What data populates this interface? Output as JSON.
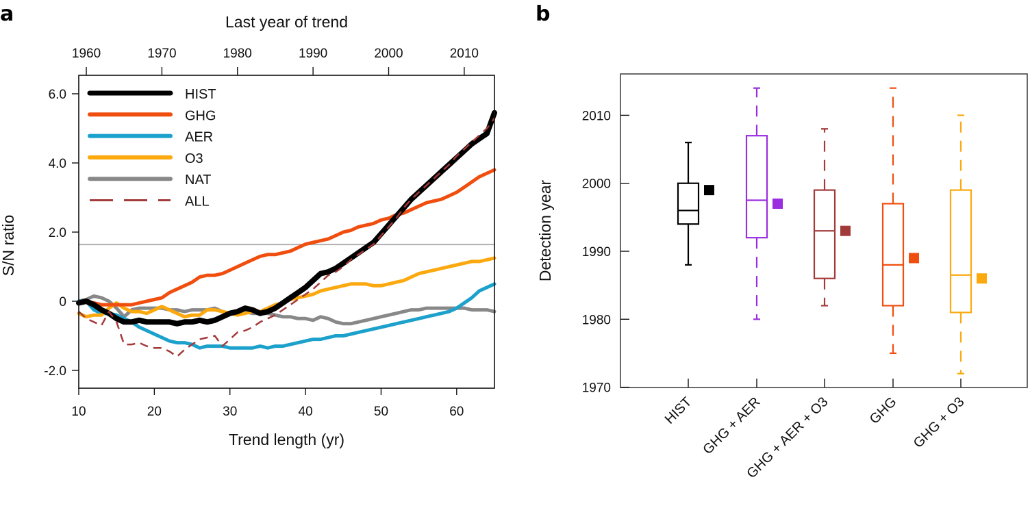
{
  "chart_data": [
    {
      "panel": "a",
      "type": "line",
      "title": "",
      "xlabel": "Trend length (yr)",
      "ylabel": "S/N ratio",
      "top_xlabel": "Last year of trend",
      "xlim": [
        10,
        65
      ],
      "ylim": [
        -2.6,
        6.5
      ],
      "xticks": [
        10,
        20,
        30,
        40,
        50,
        60
      ],
      "xtick_labels": [
        "10",
        "20",
        "30",
        "40",
        "50",
        "60"
      ],
      "yticks": [
        -2,
        0,
        2,
        4,
        6
      ],
      "ytick_labels": [
        "-2.0",
        "0",
        "2.0",
        "4.0",
        "6.0"
      ],
      "top_xticks_trend_length": [
        11,
        21,
        31,
        41,
        51,
        61
      ],
      "top_xtick_labels": [
        "1960",
        "1970",
        "1980",
        "1990",
        "2000",
        "2010"
      ],
      "threshold_line": 1.64,
      "legend_position": "top-left",
      "x": [
        10,
        11,
        12,
        13,
        14,
        15,
        16,
        17,
        18,
        19,
        20,
        21,
        22,
        23,
        24,
        25,
        26,
        27,
        28,
        29,
        30,
        31,
        32,
        33,
        34,
        35,
        36,
        37,
        38,
        39,
        40,
        41,
        42,
        43,
        44,
        45,
        46,
        47,
        48,
        49,
        50,
        51,
        52,
        53,
        54,
        55,
        56,
        57,
        58,
        59,
        60,
        61,
        62,
        63,
        64,
        65
      ],
      "series": [
        {
          "name": "HIST",
          "color": "#000000",
          "style": "solid-thick",
          "values": [
            -0.05,
            0.0,
            -0.1,
            -0.25,
            -0.35,
            -0.5,
            -0.6,
            -0.6,
            -0.55,
            -0.6,
            -0.6,
            -0.6,
            -0.6,
            -0.65,
            -0.6,
            -0.6,
            -0.55,
            -0.6,
            -0.55,
            -0.45,
            -0.35,
            -0.3,
            -0.2,
            -0.25,
            -0.35,
            -0.3,
            -0.2,
            -0.05,
            0.1,
            0.25,
            0.4,
            0.6,
            0.8,
            0.85,
            0.95,
            1.1,
            1.25,
            1.4,
            1.55,
            1.7,
            1.95,
            2.2,
            2.45,
            2.7,
            2.95,
            3.15,
            3.35,
            3.55,
            3.75,
            3.95,
            4.15,
            4.35,
            4.55,
            4.7,
            4.85,
            5.45
          ]
        },
        {
          "name": "GHG",
          "color": "#f04e0f",
          "style": "solid",
          "values": [
            -0.05,
            0.0,
            -0.05,
            -0.1,
            -0.1,
            -0.1,
            -0.1,
            -0.1,
            -0.05,
            0.0,
            0.05,
            0.1,
            0.25,
            0.35,
            0.45,
            0.55,
            0.7,
            0.75,
            0.75,
            0.8,
            0.9,
            1.0,
            1.1,
            1.2,
            1.3,
            1.35,
            1.35,
            1.4,
            1.45,
            1.55,
            1.65,
            1.7,
            1.75,
            1.8,
            1.9,
            2.0,
            2.05,
            2.15,
            2.2,
            2.25,
            2.35,
            2.4,
            2.5,
            2.55,
            2.65,
            2.75,
            2.85,
            2.9,
            2.95,
            3.05,
            3.15,
            3.3,
            3.45,
            3.6,
            3.7,
            3.8
          ]
        },
        {
          "name": "AER",
          "color": "#1ba1cc",
          "style": "solid",
          "values": [
            0.0,
            0.0,
            -0.25,
            -0.35,
            -0.35,
            -0.4,
            -0.5,
            -0.6,
            -0.75,
            -0.85,
            -0.95,
            -1.05,
            -1.15,
            -1.2,
            -1.2,
            -1.25,
            -1.35,
            -1.3,
            -1.3,
            -1.3,
            -1.35,
            -1.35,
            -1.35,
            -1.35,
            -1.3,
            -1.35,
            -1.3,
            -1.3,
            -1.25,
            -1.2,
            -1.15,
            -1.1,
            -1.1,
            -1.05,
            -1.0,
            -1.0,
            -0.95,
            -0.9,
            -0.85,
            -0.8,
            -0.75,
            -0.7,
            -0.65,
            -0.6,
            -0.55,
            -0.5,
            -0.45,
            -0.4,
            -0.35,
            -0.3,
            -0.2,
            -0.05,
            0.1,
            0.3,
            0.4,
            0.5
          ]
        },
        {
          "name": "O3",
          "color": "#fca90f",
          "style": "solid",
          "values": [
            -0.35,
            -0.45,
            -0.4,
            -0.4,
            -0.2,
            -0.05,
            -0.2,
            -0.3,
            -0.3,
            -0.35,
            -0.25,
            -0.15,
            -0.25,
            -0.35,
            -0.45,
            -0.4,
            -0.4,
            -0.25,
            -0.25,
            -0.3,
            -0.35,
            -0.4,
            -0.35,
            -0.3,
            -0.3,
            -0.2,
            -0.1,
            -0.05,
            0.05,
            0.1,
            0.15,
            0.2,
            0.3,
            0.35,
            0.4,
            0.45,
            0.5,
            0.5,
            0.5,
            0.45,
            0.45,
            0.5,
            0.55,
            0.6,
            0.7,
            0.8,
            0.85,
            0.9,
            0.95,
            1.0,
            1.05,
            1.1,
            1.15,
            1.15,
            1.2,
            1.25
          ]
        },
        {
          "name": "NAT",
          "color": "#888888",
          "style": "solid",
          "values": [
            0.0,
            0.05,
            0.15,
            0.1,
            0.0,
            -0.2,
            -0.45,
            -0.25,
            -0.2,
            -0.2,
            -0.2,
            -0.2,
            -0.25,
            -0.25,
            -0.3,
            -0.25,
            -0.25,
            -0.25,
            -0.2,
            -0.3,
            -0.35,
            -0.3,
            -0.3,
            -0.35,
            -0.35,
            -0.35,
            -0.4,
            -0.45,
            -0.45,
            -0.5,
            -0.5,
            -0.55,
            -0.45,
            -0.5,
            -0.6,
            -0.65,
            -0.65,
            -0.6,
            -0.55,
            -0.5,
            -0.45,
            -0.4,
            -0.35,
            -0.3,
            -0.25,
            -0.25,
            -0.2,
            -0.2,
            -0.2,
            -0.2,
            -0.2,
            -0.2,
            -0.25,
            -0.25,
            -0.25,
            -0.3
          ]
        },
        {
          "name": "ALL",
          "color": "#a33a3a",
          "style": "dashed",
          "values": [
            -0.3,
            -0.5,
            -0.6,
            -0.7,
            -0.3,
            -0.6,
            -1.25,
            -1.25,
            -1.2,
            -1.3,
            -1.35,
            -1.35,
            -1.45,
            -1.6,
            -1.4,
            -1.25,
            -1.1,
            -1.05,
            -1.0,
            -1.3,
            -1.1,
            -0.9,
            -0.85,
            -0.75,
            -0.6,
            -0.5,
            -0.4,
            -0.25,
            -0.1,
            0.05,
            0.2,
            0.35,
            0.55,
            0.75,
            0.85,
            1.0,
            1.2,
            1.35,
            1.5,
            1.65,
            1.9,
            2.15,
            2.4,
            2.7,
            2.95,
            3.15,
            3.35,
            3.55,
            3.75,
            3.95,
            4.2,
            4.4,
            4.6,
            4.8,
            5.0,
            5.3
          ]
        }
      ]
    },
    {
      "panel": "b",
      "type": "box",
      "title": "",
      "xlabel": "",
      "ylabel": "Detection year",
      "ylim": [
        1970,
        2016
      ],
      "yticks": [
        1970,
        1980,
        1990,
        2000,
        2010
      ],
      "ytick_labels": [
        "1970",
        "1980",
        "1990",
        "2000",
        "2010"
      ],
      "categories": [
        "HIST",
        "GHG + AER",
        "GHG + AER + O3",
        "GHG",
        "GHG + O3"
      ],
      "boxes": [
        {
          "name": "HIST",
          "color": "#000000",
          "whisker_low": 1988,
          "q1": 1994,
          "median": 1996,
          "q3": 2000,
          "whisker_high": 2006,
          "marker": 1999
        },
        {
          "name": "GHG + AER",
          "color": "#9b2de0",
          "whisker_low": 1980,
          "q1": 1992,
          "median": 1997.5,
          "q3": 2007,
          "whisker_high": 2014,
          "marker": 1997
        },
        {
          "name": "GHG + AER + O3",
          "color": "#a33a3a",
          "whisker_low": 1982,
          "q1": 1986,
          "median": 1993,
          "q3": 1999,
          "whisker_high": 2008,
          "marker": 1993
        },
        {
          "name": "GHG",
          "color": "#f04e0f",
          "whisker_low": 1975,
          "q1": 1982,
          "median": 1988,
          "q3": 1997,
          "whisker_high": 2014,
          "marker": 1989
        },
        {
          "name": "GHG + O3",
          "color": "#fca90f",
          "whisker_low": 1972,
          "q1": 1981,
          "median": 1986.5,
          "q3": 1999,
          "whisker_high": 2010,
          "marker": 1986
        }
      ]
    }
  ],
  "labels": {
    "panel_a": "a",
    "panel_b": "b"
  }
}
